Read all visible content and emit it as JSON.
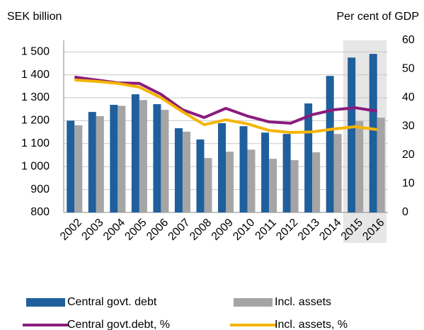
{
  "chart_data": {
    "type": "bar_line",
    "ylabel": "SEK billion",
    "y2label": "Per  cent of GDP",
    "categories": [
      "2002",
      "2003",
      "2004",
      "2005",
      "2006",
      "2007",
      "2008",
      "2009",
      "2010",
      "2011",
      "2012",
      "2013",
      "2014",
      "2015",
      "2016"
    ],
    "series": [
      {
        "name": "Central  govt. debt",
        "type": "bar",
        "color": "#1f5f9c",
        "values": [
          1200,
          1238,
          1269,
          1315,
          1272,
          1167,
          1118,
          1189,
          1176,
          1148,
          1142,
          1275,
          1395,
          1475,
          1491
        ]
      },
      {
        "name": "Incl. assets",
        "type": "bar",
        "color": "#a5a5a5",
        "values": [
          1180,
          1220,
          1265,
          1290,
          1247,
          1152,
          1037,
          1065,
          1074,
          1034,
          1028,
          1062,
          1142,
          1198,
          1213
        ]
      },
      {
        "name": "Central govt.debt, %",
        "type": "line",
        "axis": "y2",
        "color": "#8a1b7e",
        "values": [
          47.2,
          46.2,
          45.2,
          45,
          41.2,
          35.8,
          33.1,
          36.3,
          33.6,
          31.6,
          31.1,
          34.1,
          35.8,
          36.5,
          35.3
        ]
      },
      {
        "name": "Incl. assets, %",
        "type": "line",
        "axis": "y2",
        "color": "#f5b400",
        "values": [
          46.2,
          45.7,
          45,
          43.7,
          40,
          35.1,
          30.6,
          32.3,
          30.9,
          28.6,
          27.9,
          28.1,
          29.1,
          29.9,
          28.9
        ]
      }
    ],
    "ylim": [
      800,
      1550
    ],
    "yticks": [
      800,
      900,
      {
        "value": 1000,
        "label": "1 000"
      },
      {
        "value": 1100,
        "label": "1 100"
      },
      {
        "value": 1200,
        "label": "1 200"
      },
      {
        "value": 1300,
        "label": "1 300"
      },
      {
        "value": 1400,
        "label": "1 400"
      },
      {
        "value": 1500,
        "label": "1 500"
      }
    ],
    "y2lim": [
      0,
      60
    ],
    "y2ticks": [
      0,
      10,
      20,
      30,
      40,
      50,
      60
    ],
    "shaded_categories": [
      "2015",
      "2016"
    ],
    "grid": true
  }
}
